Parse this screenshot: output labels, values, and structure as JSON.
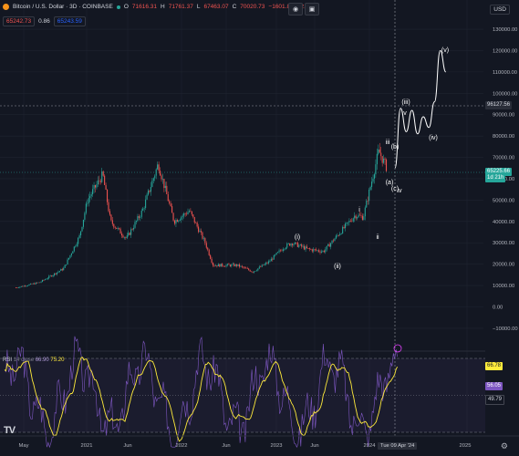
{
  "header": {
    "symbol": "Bitcoin / U.S. Dollar · 3D · COINBASE",
    "o_label": "O",
    "o_value": "71616.31",
    "h_label": "H",
    "h_value": "71761.37",
    "l_label": "L",
    "l_value": "67463.07",
    "c_label": "C",
    "c_value": "70020.73",
    "change": "−1601.80 (−2.24%)",
    "bid": "65242.73",
    "spread": "0.86",
    "ask": "65243.59",
    "currency": "USD"
  },
  "chart_data": {
    "type": "line",
    "price_axis": {
      "ticks": [
        "130000.00",
        "120000.00",
        "110000.00",
        "100000.00",
        "90000.00",
        "80000.00",
        "70000.00",
        "60000.00",
        "50000.00",
        "40000.00",
        "30000.00",
        "20000.00",
        "10000.00",
        "0.00",
        "−10000.00"
      ],
      "tick_values": [
        130000,
        120000,
        110000,
        100000,
        90000,
        80000,
        70000,
        60000,
        50000,
        40000,
        30000,
        20000,
        10000,
        0,
        -10000
      ]
    },
    "time_axis": {
      "labels": [
        "May",
        "2021",
        "Jun",
        "2022",
        "Jun",
        "2023",
        "Jun",
        "2024",
        "2025"
      ]
    },
    "price_series": {
      "x": [
        "2020-05",
        "2020-08",
        "2020-11",
        "2021-01",
        "2021-02",
        "2021-04",
        "2021-05",
        "2021-07",
        "2021-09",
        "2021-11",
        "2022-01",
        "2022-03",
        "2022-05",
        "2022-06",
        "2022-09",
        "2022-11",
        "2023-01",
        "2023-03",
        "2023-04",
        "2023-06",
        "2023-08",
        "2023-10",
        "2023-12",
        "2024-01",
        "2024-03",
        "2024-04"
      ],
      "y": [
        9000,
        11500,
        18000,
        33000,
        50000,
        62000,
        40000,
        32000,
        45000,
        67000,
        40000,
        45000,
        30000,
        19500,
        19500,
        16500,
        21000,
        28000,
        30000,
        27000,
        26000,
        34500,
        43000,
        42000,
        73000,
        65000
      ]
    },
    "projection": {
      "x": [
        "2024-04",
        "2024-05",
        "2024-06",
        "2024-07",
        "2024-08",
        "2024-09",
        "2024-10",
        "2024-11",
        "2024-12",
        "2025-01"
      ],
      "y": [
        65000,
        93000,
        82000,
        92000,
        81000,
        89000,
        84000,
        96000,
        120000,
        110000
      ]
    },
    "wave_labels": [
      "(i)",
      "(ii)",
      "i",
      "ii",
      "iii",
      "(a)",
      "(b)",
      "(c)",
      "iv",
      "(iii)",
      "v",
      "(iv)",
      "(v)"
    ],
    "price_tags": {
      "crosshair": "96127.56",
      "current": "65225.66",
      "countdown": "1d 21h"
    },
    "rsi": {
      "title": "RSI",
      "params": "14 close",
      "value1": "66.90",
      "value2": "75.20",
      "ticks": [
        "70.00",
        "50.00",
        "30.00"
      ],
      "tag_yellow": "66.78",
      "tag_purple": "56.05",
      "tag_level": "49.79"
    },
    "crosshair_date": "Tue 09 Apr '24",
    "colors": {
      "up": "#26a69a",
      "down": "#ef5350",
      "rsi_line": "#7e57c2",
      "rsi_ma": "#ffeb3b",
      "background": "#131722"
    }
  }
}
